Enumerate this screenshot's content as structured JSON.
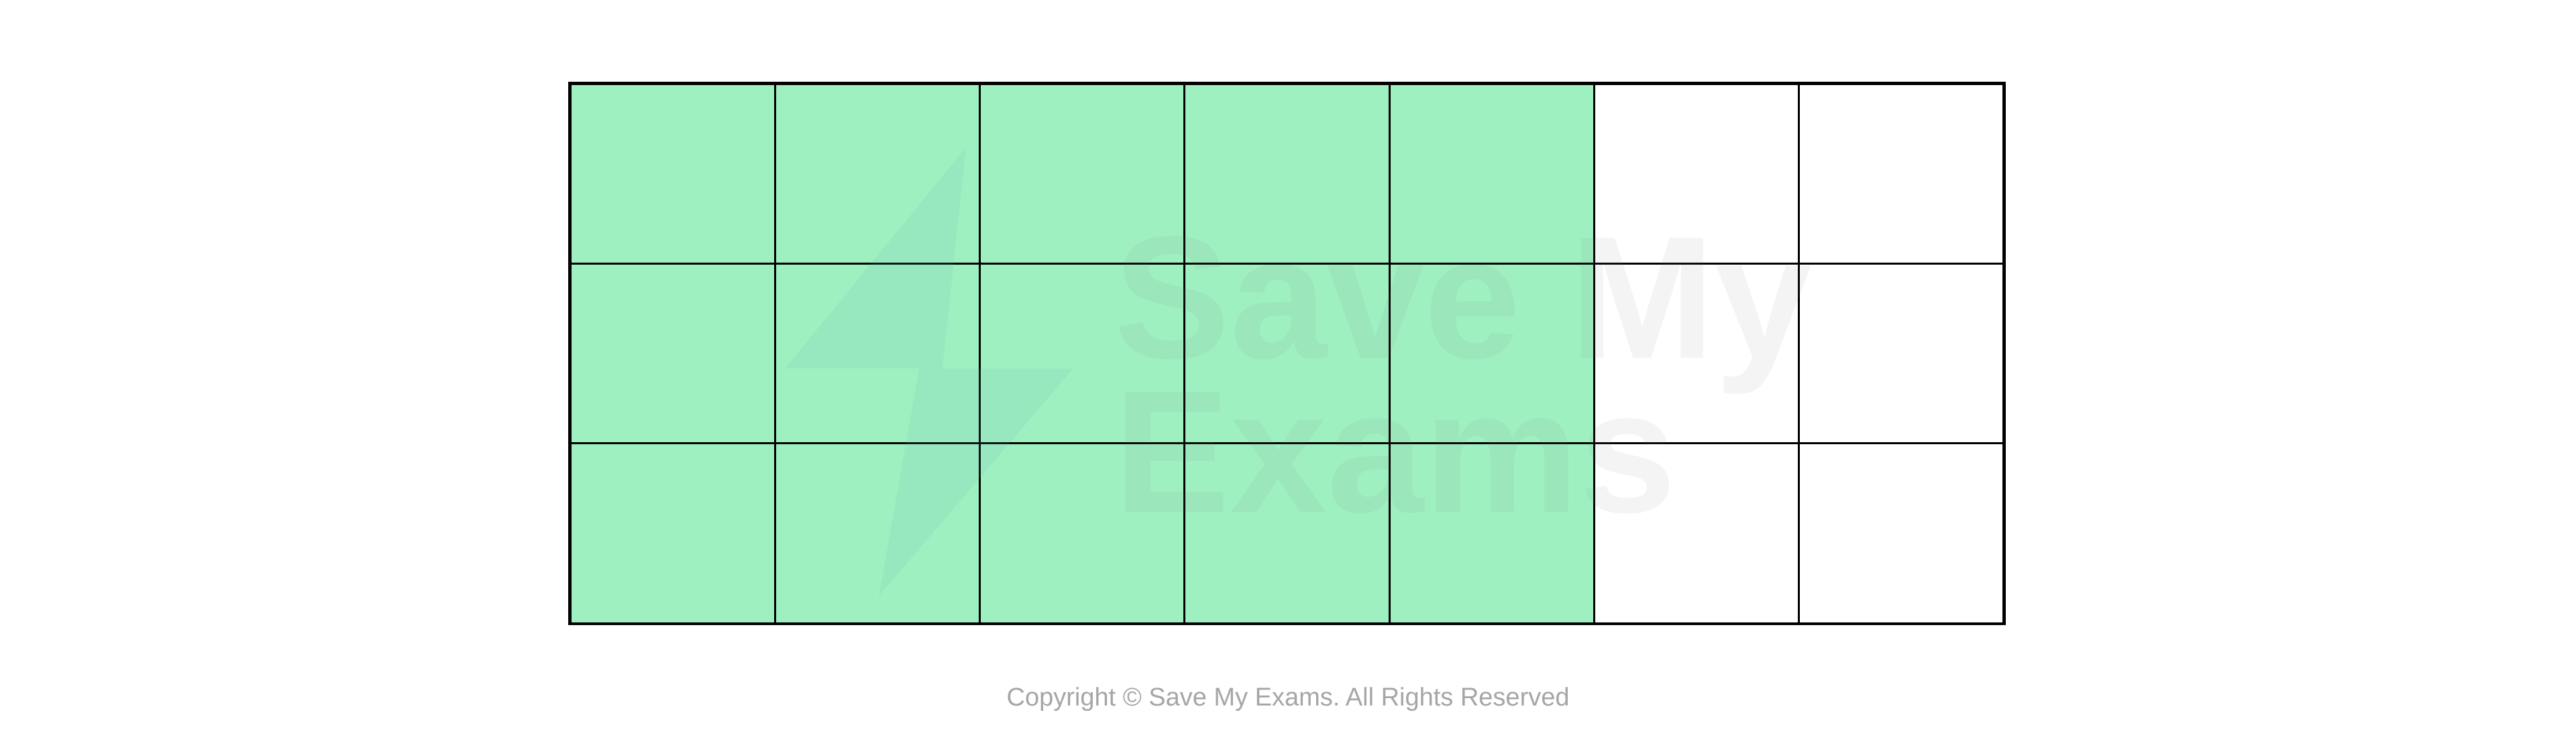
{
  "diagram": {
    "type": "area-model grid",
    "rows": 3,
    "columns": 7,
    "shaded_columns": 5,
    "shaded_fraction": "15/21",
    "shade_color": "#9ff0c0",
    "line_color": "#000000"
  },
  "watermark": {
    "text": "Save My Exams"
  },
  "footer": {
    "copyright": "Copyright © Save My Exams. All Rights Reserved"
  }
}
